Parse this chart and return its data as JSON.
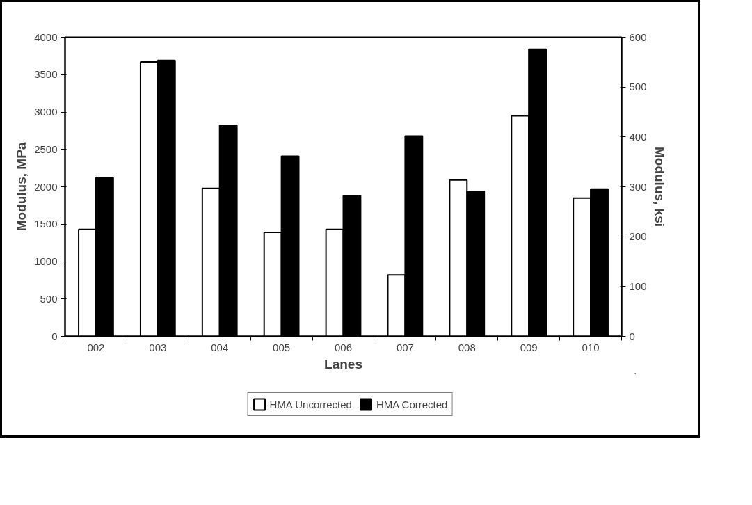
{
  "chart_data": {
    "type": "bar",
    "xlabel": "Lanes",
    "ylabel": "Modulus, MPa",
    "y2label": "Modulus, ksi",
    "categories": [
      "002",
      "003",
      "004",
      "005",
      "006",
      "007",
      "008",
      "009",
      "010"
    ],
    "series": [
      {
        "name": "HMA Uncorrected",
        "color": "#ffffff",
        "values": [
          1430,
          3670,
          1980,
          1390,
          1430,
          820,
          2090,
          2950,
          1850
        ]
      },
      {
        "name": "HMA Corrected",
        "color": "#000000",
        "values": [
          2120,
          3690,
          2820,
          2410,
          1880,
          2680,
          1940,
          3840,
          1970
        ]
      }
    ],
    "ylim": [
      0,
      4000
    ],
    "yticks": [
      0,
      500,
      1000,
      1500,
      2000,
      2500,
      3000,
      3500,
      4000
    ],
    "y2lim": [
      0,
      600
    ],
    "y2ticks": [
      0,
      100,
      200,
      300,
      400,
      500,
      600
    ],
    "grid": false,
    "legend": "bottom"
  }
}
